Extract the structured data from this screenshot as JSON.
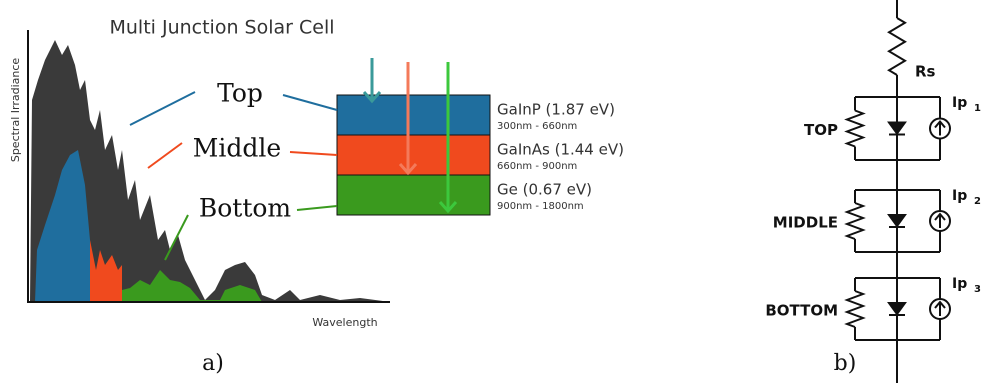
{
  "panel_a": {
    "title": "Multi Junction Solar Cell",
    "y_axis_label": "Spectral Irradiance",
    "x_axis_label": "Wavelength",
    "layers": [
      {
        "label": "Top",
        "material": "GaInP (1.87 eV)",
        "range": "300nm - 660nm"
      },
      {
        "label": "Middle",
        "material": "GaInAs (1.44 eV)",
        "range": "660nm - 900nm"
      },
      {
        "label": "Bottom",
        "material": "Ge (0.67 eV)",
        "range": "900nm - 1800nm"
      }
    ],
    "caption": "a)"
  },
  "panel_b": {
    "series_resistor": "Rs",
    "junctions": [
      {
        "label": "TOP",
        "source": {
          "main": "Ip",
          "sub": "1"
        }
      },
      {
        "label": "MIDDLE",
        "source": {
          "main": "Ip",
          "sub": "2"
        }
      },
      {
        "label": "BOTTOM",
        "source": {
          "main": "Ip",
          "sub": "3"
        }
      }
    ],
    "caption": "b)"
  }
}
